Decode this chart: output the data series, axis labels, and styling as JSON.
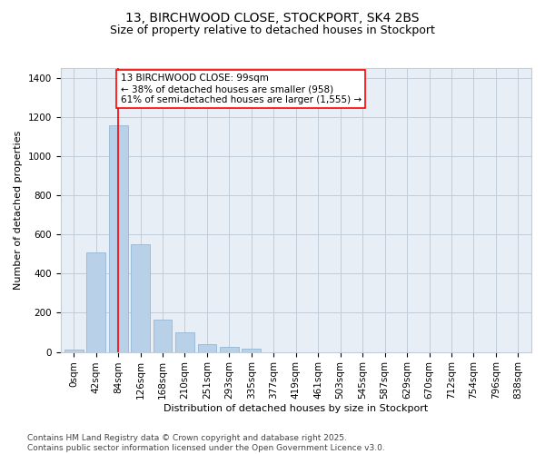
{
  "title_line1": "13, BIRCHWOOD CLOSE, STOCKPORT, SK4 2BS",
  "title_line2": "Size of property relative to detached houses in Stockport",
  "xlabel": "Distribution of detached houses by size in Stockport",
  "ylabel": "Number of detached properties",
  "categories": [
    "0sqm",
    "42sqm",
    "84sqm",
    "126sqm",
    "168sqm",
    "210sqm",
    "251sqm",
    "293sqm",
    "335sqm",
    "377sqm",
    "419sqm",
    "461sqm",
    "503sqm",
    "545sqm",
    "587sqm",
    "629sqm",
    "670sqm",
    "712sqm",
    "754sqm",
    "796sqm",
    "838sqm"
  ],
  "values": [
    10,
    510,
    1160,
    550,
    165,
    98,
    38,
    28,
    15,
    0,
    0,
    0,
    0,
    0,
    0,
    0,
    0,
    0,
    0,
    0,
    0
  ],
  "bar_color": "#b8d0e8",
  "bar_edge_color": "#8ab0d0",
  "vline_x_idx": 2,
  "vline_color": "red",
  "annotation_text_line1": "13 BIRCHWOOD CLOSE: 99sqm",
  "annotation_text_line2": "← 38% of detached houses are smaller (958)",
  "annotation_text_line3": "61% of semi-detached houses are larger (1,555) →",
  "annotation_box_color": "white",
  "annotation_box_edge_color": "red",
  "ylim": [
    0,
    1450
  ],
  "yticks": [
    0,
    200,
    400,
    600,
    800,
    1000,
    1200,
    1400
  ],
  "background_color": "#e8eef5",
  "grid_color": "#c0ccd8",
  "footer_line1": "Contains HM Land Registry data © Crown copyright and database right 2025.",
  "footer_line2": "Contains public sector information licensed under the Open Government Licence v3.0.",
  "title_fontsize": 10,
  "subtitle_fontsize": 9,
  "label_fontsize": 8,
  "tick_fontsize": 7.5,
  "annotation_fontsize": 7.5,
  "footer_fontsize": 6.5
}
